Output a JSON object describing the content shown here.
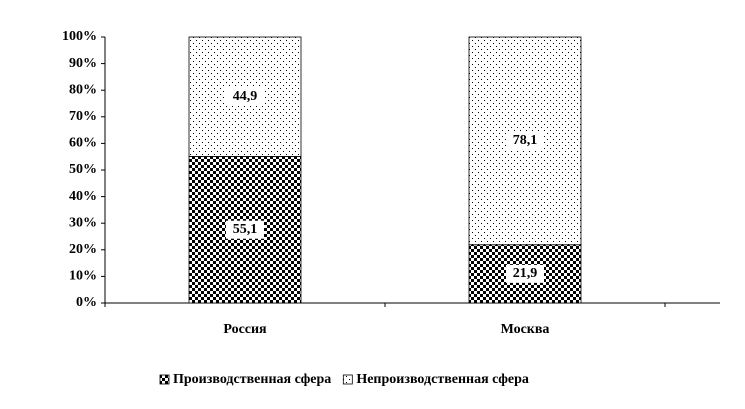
{
  "chart_data": {
    "type": "stacked_bar_100",
    "categories": [
      "Россия",
      "Москва"
    ],
    "series": [
      {
        "name": "Производственная сфера",
        "color": "#000000",
        "pattern": "checker",
        "values": [
          55.1,
          21.9
        ],
        "value_labels": [
          "55,1",
          "21,9"
        ]
      },
      {
        "name": "Непроизводственная сфера",
        "color": "#000000",
        "pattern": "dots",
        "values": [
          44.9,
          78.1
        ],
        "value_labels": [
          "44,9",
          "78,1"
        ]
      }
    ],
    "ylim": [
      0,
      100
    ],
    "yticks": [
      {
        "value": 0,
        "label": "0%"
      },
      {
        "value": 10,
        "label": "10%"
      },
      {
        "value": 20,
        "label": "20%"
      },
      {
        "value": 30,
        "label": "30%"
      },
      {
        "value": 40,
        "label": "40%"
      },
      {
        "value": 50,
        "label": "50%"
      },
      {
        "value": 60,
        "label": "60%"
      },
      {
        "value": 70,
        "label": "70%"
      },
      {
        "value": 80,
        "label": "80%"
      },
      {
        "value": 90,
        "label": "90%"
      },
      {
        "value": 100,
        "label": "100%"
      }
    ],
    "legend": "bottom"
  }
}
